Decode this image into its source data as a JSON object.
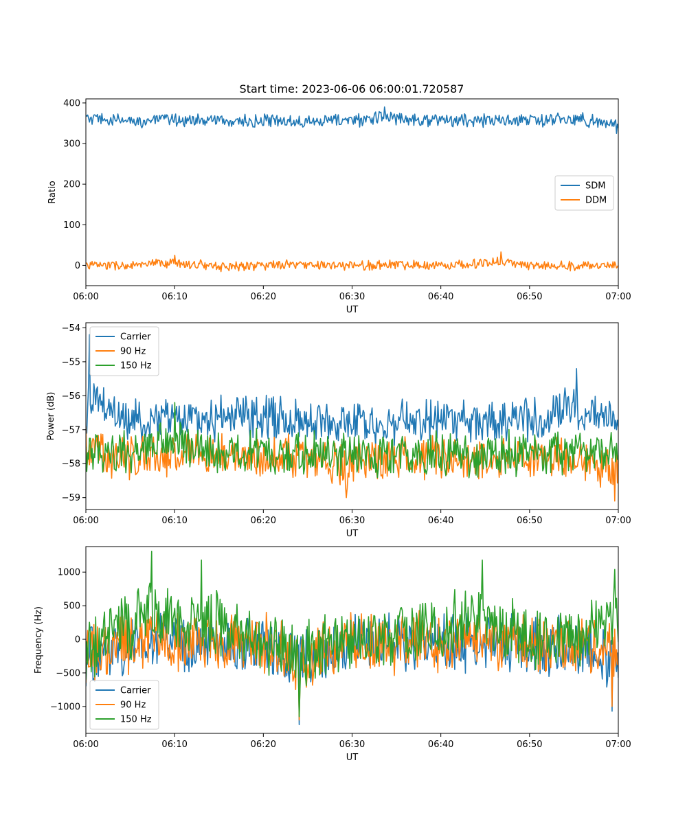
{
  "figure_title": "Start time: 2023-06-06 06:00:01.720587",
  "colors": {
    "c0": "#1f77b4",
    "c1": "#ff7f0e",
    "c2": "#2ca02c"
  },
  "chart_data": [
    {
      "type": "line",
      "title": "Start time: 2023-06-06 06:00:01.720587",
      "xlabel": "UT",
      "ylabel": "Ratio",
      "xticks": [
        "06:00",
        "06:10",
        "06:20",
        "06:30",
        "06:40",
        "06:50",
        "07:00"
      ],
      "xlim": [
        "06:00",
        "07:00"
      ],
      "ylim": [
        -50,
        410
      ],
      "yticks": [
        0,
        100,
        200,
        300,
        400
      ],
      "grid": false,
      "legend_position": "center-right",
      "series": [
        {
          "name": "SDM",
          "color": "#1f77b4",
          "mean": 357,
          "noise": 28,
          "x": [
            "06:00",
            "06:05",
            "06:10",
            "06:15",
            "06:20",
            "06:25",
            "06:30",
            "06:33.7",
            "06:40",
            "06:45",
            "06:50",
            "06:55",
            "06:59.8"
          ],
          "y": [
            370,
            350,
            365,
            355,
            345,
            360,
            355,
            390,
            355,
            360,
            355,
            370,
            325
          ]
        },
        {
          "name": "DDM",
          "color": "#ff7f0e",
          "mean": 0,
          "noise": 20,
          "x": [
            "06:00",
            "06:05",
            "06:10",
            "06:15",
            "06:20",
            "06:25",
            "06:30",
            "06:35",
            "06:40",
            "06:46.8",
            "06:50",
            "06:55",
            "07:00"
          ],
          "y": [
            5,
            -5,
            25,
            -10,
            0,
            5,
            -5,
            10,
            0,
            33,
            0,
            -5,
            0
          ]
        }
      ]
    },
    {
      "type": "line",
      "xlabel": "UT",
      "ylabel": "Power (dB)",
      "xticks": [
        "06:00",
        "06:10",
        "06:20",
        "06:30",
        "06:40",
        "06:50",
        "07:00"
      ],
      "xlim": [
        "06:00",
        "07:00"
      ],
      "ylim": [
        -59.35,
        -53.85
      ],
      "yticks": [
        -59,
        -58,
        -57,
        -56,
        -55,
        -54
      ],
      "grid": false,
      "legend_position": "upper-left",
      "series": [
        {
          "name": "Carrier",
          "color": "#1f77b4",
          "mean": -56.7,
          "noise": 1.1,
          "x": [
            "06:00",
            "06:00.4",
            "06:05",
            "06:10",
            "06:15",
            "06:20",
            "06:25",
            "06:30",
            "06:35",
            "06:40",
            "06:45",
            "06:50",
            "06:55.3",
            "06:59.8"
          ],
          "y": [
            -57.0,
            -54.2,
            -56.8,
            -56.5,
            -56.6,
            -56.3,
            -56.7,
            -57.0,
            -56.9,
            -56.8,
            -56.7,
            -56.6,
            -55.2,
            -57.0
          ]
        },
        {
          "name": "90 Hz",
          "color": "#ff7f0e",
          "mean": -57.8,
          "noise": 1.1,
          "x": [
            "06:00",
            "06:05",
            "06:10",
            "06:15",
            "06:20",
            "06:25",
            "06:29.3",
            "06:35",
            "06:40",
            "06:45",
            "06:50",
            "06:55",
            "06:59.6"
          ],
          "y": [
            -56.9,
            -57.9,
            -57.4,
            -57.6,
            -57.5,
            -57.9,
            -59.0,
            -57.9,
            -58.0,
            -57.9,
            -57.8,
            -57.7,
            -59.1
          ]
        },
        {
          "name": "150 Hz",
          "color": "#2ca02c",
          "mean": -57.7,
          "noise": 1.1,
          "x": [
            "06:00",
            "06:05",
            "06:10",
            "06:15",
            "06:20",
            "06:25",
            "06:30",
            "06:35",
            "06:40",
            "06:45",
            "06:50",
            "06:55",
            "07:00"
          ],
          "y": [
            -57.5,
            -57.8,
            -56.2,
            -57.6,
            -57.5,
            -57.8,
            -57.6,
            -57.8,
            -57.8,
            -57.7,
            -57.6,
            -57.5,
            -57.9
          ]
        }
      ]
    },
    {
      "type": "line",
      "xlabel": "UT",
      "ylabel": "Frequency (Hz)",
      "xticks": [
        "06:00",
        "06:10",
        "06:20",
        "06:30",
        "06:40",
        "06:50",
        "07:00"
      ],
      "xlim": [
        "06:00",
        "07:00"
      ],
      "ylim": [
        -1400,
        1380
      ],
      "yticks": [
        -1000,
        -500,
        0,
        500,
        1000
      ],
      "grid": false,
      "legend_position": "lower-left",
      "series": [
        {
          "name": "Carrier",
          "color": "#1f77b4",
          "mean": -60,
          "noise": 750,
          "x": [
            "06:00",
            "06:05",
            "06:10",
            "06:15",
            "06:20",
            "06:24",
            "06:30",
            "06:35",
            "06:40",
            "06:45",
            "06:50",
            "06:55",
            "06:59.3"
          ],
          "y": [
            -700,
            -200,
            0,
            -100,
            -100,
            -1270,
            -100,
            -150,
            0,
            -100,
            -150,
            -150,
            -1070
          ]
        },
        {
          "name": "90 Hz",
          "color": "#ff7f0e",
          "mean": -30,
          "noise": 750,
          "x": [
            "06:00",
            "06:05",
            "06:10",
            "06:15",
            "06:20",
            "06:24",
            "06:30",
            "06:35",
            "06:40",
            "06:45",
            "06:50",
            "06:55",
            "06:59.3"
          ],
          "y": [
            -650,
            -150,
            50,
            -50,
            -50,
            -1200,
            -50,
            -100,
            50,
            -50,
            -100,
            -100,
            -1000
          ]
        },
        {
          "name": "150 Hz",
          "color": "#2ca02c",
          "mean": 30,
          "noise": 780,
          "x": [
            "06:00",
            "06:07.4",
            "06:13",
            "06:20",
            "06:24",
            "06:30",
            "06:35",
            "06:44.7",
            "06:50",
            "06:55",
            "06:59.6"
          ],
          "y": [
            -600,
            1310,
            1180,
            0,
            -1150,
            50,
            0,
            1180,
            0,
            0,
            1040
          ]
        }
      ]
    }
  ]
}
